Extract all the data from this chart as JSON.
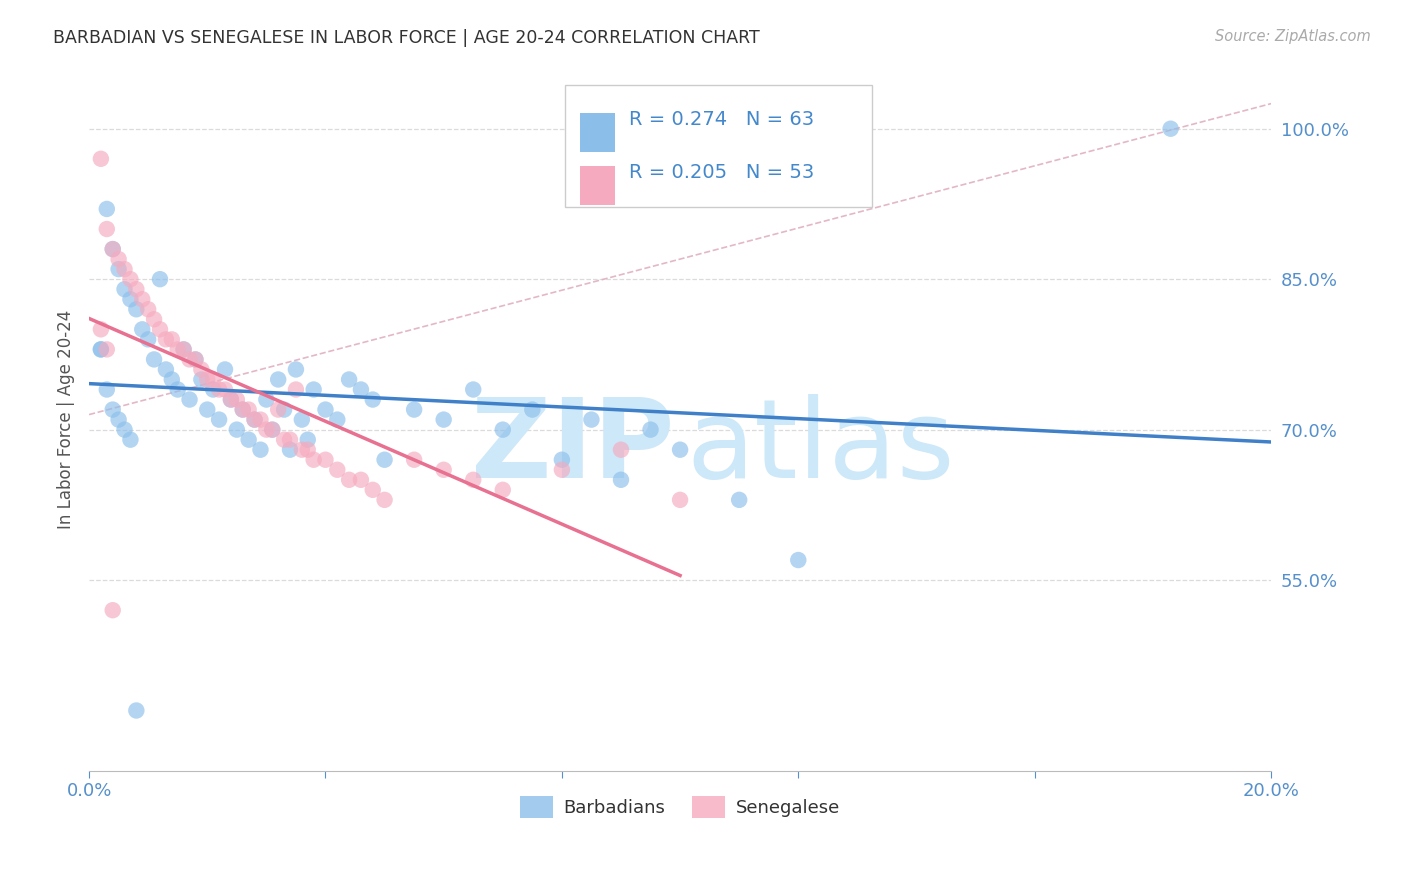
{
  "title": "BARBADIAN VS SENEGALESE IN LABOR FORCE | AGE 20-24 CORRELATION CHART",
  "source_text": "Source: ZipAtlas.com",
  "ylabel": "In Labor Force | Age 20-24",
  "xlim": [
    0.0,
    0.2
  ],
  "ylim": [
    0.36,
    1.06
  ],
  "xticks": [
    0.0,
    0.04,
    0.08,
    0.12,
    0.16,
    0.2
  ],
  "xticklabels": [
    "0.0%",
    "",
    "",
    "",
    "",
    "20.0%"
  ],
  "yticks_right": [
    0.55,
    0.7,
    0.85,
    1.0
  ],
  "ytick_labels_right": [
    "55.0%",
    "70.0%",
    "85.0%",
    "100.0%"
  ],
  "barbadian_color": "#8bbfea",
  "senegalese_color": "#f5aabf",
  "barbadian_line_color": "#4080c8",
  "senegalese_line_color": "#e87090",
  "ref_line_color": "#e0b0c0",
  "grid_color": "#cccccc",
  "legend_R_barbadian": "R = 0.274",
  "legend_N_barbadian": "N = 63",
  "legend_R_senegalese": "R = 0.205",
  "legend_N_senegalese": "N = 53",
  "legend_text_color": "#4488cc",
  "watermark_zip_color": "#cde8f8",
  "watermark_atlas_color": "#cde8f8",
  "axis_tick_color": "#5590cc",
  "title_color": "#333333",
  "source_color": "#aaaaaa",
  "barbadian_label": "Barbadians",
  "senegalese_label": "Senegalese",
  "barbadian_x": [
    0.002,
    0.003,
    0.004,
    0.005,
    0.006,
    0.007,
    0.008,
    0.009,
    0.01,
    0.011,
    0.012,
    0.013,
    0.014,
    0.015,
    0.016,
    0.017,
    0.018,
    0.019,
    0.02,
    0.021,
    0.022,
    0.023,
    0.024,
    0.025,
    0.026,
    0.027,
    0.028,
    0.029,
    0.03,
    0.031,
    0.032,
    0.033,
    0.034,
    0.035,
    0.036,
    0.037,
    0.038,
    0.04,
    0.042,
    0.044,
    0.046,
    0.048,
    0.05,
    0.055,
    0.06,
    0.065,
    0.07,
    0.075,
    0.08,
    0.085,
    0.09,
    0.095,
    0.1,
    0.11,
    0.12,
    0.002,
    0.003,
    0.004,
    0.005,
    0.006,
    0.007,
    0.008,
    0.183
  ],
  "barbadian_y": [
    0.78,
    0.92,
    0.88,
    0.86,
    0.84,
    0.83,
    0.82,
    0.8,
    0.79,
    0.77,
    0.85,
    0.76,
    0.75,
    0.74,
    0.78,
    0.73,
    0.77,
    0.75,
    0.72,
    0.74,
    0.71,
    0.76,
    0.73,
    0.7,
    0.72,
    0.69,
    0.71,
    0.68,
    0.73,
    0.7,
    0.75,
    0.72,
    0.68,
    0.76,
    0.71,
    0.69,
    0.74,
    0.72,
    0.71,
    0.75,
    0.74,
    0.73,
    0.67,
    0.72,
    0.71,
    0.74,
    0.7,
    0.72,
    0.67,
    0.71,
    0.65,
    0.7,
    0.68,
    0.63,
    0.57,
    0.78,
    0.74,
    0.72,
    0.71,
    0.7,
    0.69,
    0.42,
    1.0
  ],
  "senegalese_x": [
    0.002,
    0.003,
    0.004,
    0.005,
    0.006,
    0.007,
    0.008,
    0.009,
    0.01,
    0.011,
    0.012,
    0.013,
    0.014,
    0.015,
    0.016,
    0.017,
    0.018,
    0.019,
    0.02,
    0.021,
    0.022,
    0.023,
    0.024,
    0.025,
    0.026,
    0.027,
    0.028,
    0.029,
    0.03,
    0.031,
    0.032,
    0.033,
    0.034,
    0.035,
    0.036,
    0.037,
    0.038,
    0.04,
    0.042,
    0.044,
    0.046,
    0.048,
    0.05,
    0.055,
    0.06,
    0.065,
    0.07,
    0.08,
    0.09,
    0.1,
    0.002,
    0.003,
    0.004
  ],
  "senegalese_y": [
    0.97,
    0.9,
    0.88,
    0.87,
    0.86,
    0.85,
    0.84,
    0.83,
    0.82,
    0.81,
    0.8,
    0.79,
    0.79,
    0.78,
    0.78,
    0.77,
    0.77,
    0.76,
    0.75,
    0.75,
    0.74,
    0.74,
    0.73,
    0.73,
    0.72,
    0.72,
    0.71,
    0.71,
    0.7,
    0.7,
    0.72,
    0.69,
    0.69,
    0.74,
    0.68,
    0.68,
    0.67,
    0.67,
    0.66,
    0.65,
    0.65,
    0.64,
    0.63,
    0.67,
    0.66,
    0.65,
    0.64,
    0.66,
    0.68,
    0.63,
    0.8,
    0.78,
    0.52
  ]
}
